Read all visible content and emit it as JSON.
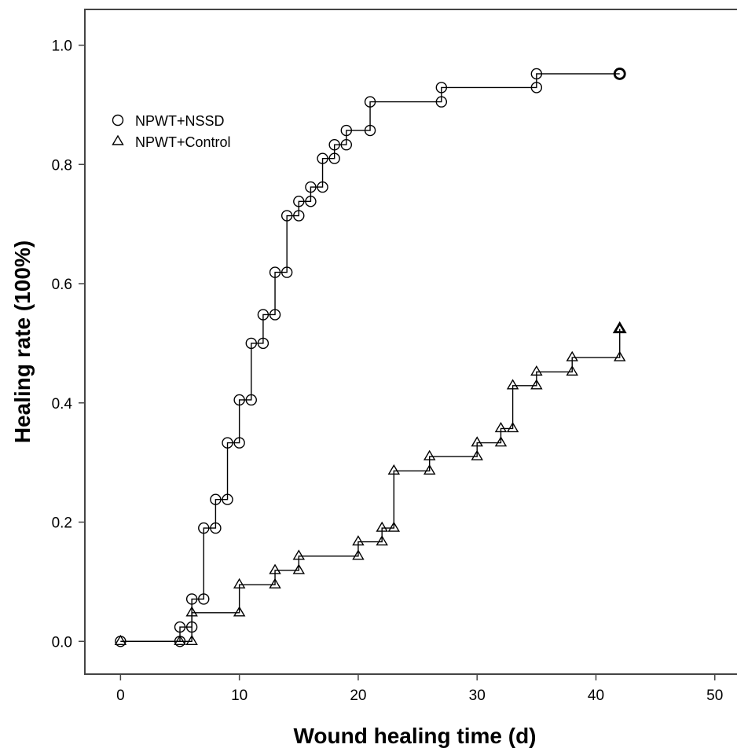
{
  "chart_data": {
    "type": "line",
    "title": "",
    "xlabel": "Wound healing time (d)",
    "ylabel": "Healing rate (100%)",
    "xlim": [
      -3,
      52
    ],
    "ylim": [
      -0.055,
      1.06
    ],
    "xticks": [
      0,
      10,
      20,
      30,
      40,
      50
    ],
    "yticks": [
      0.0,
      0.2,
      0.4,
      0.6,
      0.8,
      1.0
    ],
    "xtick_labels": [
      "0",
      "10",
      "20",
      "30",
      "40",
      "50"
    ],
    "ytick_labels": [
      "0.0",
      "0.2",
      "0.4",
      "0.6",
      "0.8",
      "1.0"
    ],
    "grid": false,
    "legend_position": "top-left",
    "line_color": "#000000",
    "marker_stroke": "#000000",
    "series": [
      {
        "name": "NPWT+NSSD",
        "marker": "circle",
        "censored_marker": "circle-bold",
        "x": [
          0,
          5,
          6,
          7,
          8,
          9,
          10,
          11,
          12,
          13,
          14,
          15,
          16,
          17,
          18,
          19,
          21,
          27,
          35,
          42
        ],
        "y_before": [
          0.0,
          0.0,
          0.024,
          0.071,
          0.19,
          0.238,
          0.333,
          0.405,
          0.5,
          0.548,
          0.619,
          0.714,
          0.738,
          0.762,
          0.81,
          0.833,
          0.857,
          0.905,
          0.929,
          0.952
        ],
        "y_after": [
          0.0,
          0.024,
          0.071,
          0.19,
          0.238,
          0.333,
          0.405,
          0.5,
          0.548,
          0.619,
          0.714,
          0.738,
          0.762,
          0.81,
          0.833,
          0.857,
          0.905,
          0.929,
          0.952,
          0.952
        ]
      },
      {
        "name": "NPWT+Control",
        "marker": "triangle",
        "censored_marker": "triangle-bold",
        "x": [
          0,
          5,
          6,
          10,
          13,
          15,
          20,
          22,
          23,
          26,
          30,
          32,
          33,
          35,
          38,
          42
        ],
        "y_before": [
          0.0,
          0.0,
          0.0,
          0.048,
          0.095,
          0.119,
          0.143,
          0.167,
          0.19,
          0.286,
          0.31,
          0.333,
          0.357,
          0.429,
          0.452,
          0.476
        ],
        "y_after": [
          0.0,
          0.0,
          0.048,
          0.095,
          0.119,
          0.143,
          0.167,
          0.19,
          0.286,
          0.31,
          0.333,
          0.357,
          0.429,
          0.452,
          0.476,
          0.524
        ]
      }
    ]
  }
}
